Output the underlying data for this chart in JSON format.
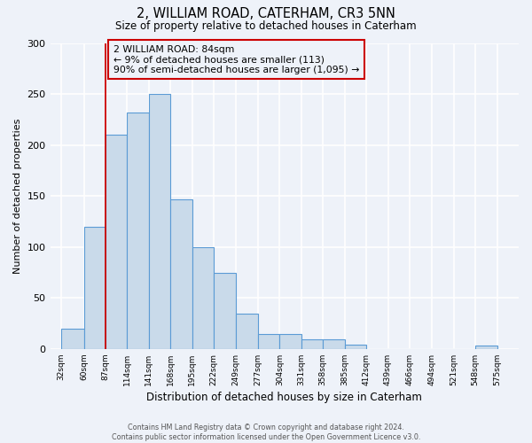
{
  "title": "2, WILLIAM ROAD, CATERHAM, CR3 5NN",
  "subtitle": "Size of property relative to detached houses in Caterham",
  "xlabel": "Distribution of detached houses by size in Caterham",
  "ylabel": "Number of detached properties",
  "bar_left_edges": [
    32,
    60,
    87,
    114,
    141,
    168,
    195,
    222,
    249,
    277,
    304,
    331,
    358,
    385,
    412,
    439,
    466,
    494,
    521,
    548
  ],
  "bar_widths": [
    28,
    27,
    27,
    27,
    27,
    27,
    27,
    27,
    28,
    27,
    27,
    27,
    27,
    27,
    27,
    27,
    28,
    27,
    27,
    27
  ],
  "bar_heights": [
    20,
    120,
    210,
    232,
    250,
    147,
    100,
    75,
    35,
    15,
    15,
    9,
    9,
    4,
    0,
    0,
    0,
    0,
    0,
    3
  ],
  "bar_color": "#c9daea",
  "bar_edge_color": "#5b9bd5",
  "tick_labels": [
    "32sqm",
    "60sqm",
    "87sqm",
    "114sqm",
    "141sqm",
    "168sqm",
    "195sqm",
    "222sqm",
    "249sqm",
    "277sqm",
    "304sqm",
    "331sqm",
    "358sqm",
    "385sqm",
    "412sqm",
    "439sqm",
    "466sqm",
    "494sqm",
    "521sqm",
    "548sqm",
    "575sqm"
  ],
  "tick_positions": [
    32,
    60,
    87,
    114,
    141,
    168,
    195,
    222,
    249,
    277,
    304,
    331,
    358,
    385,
    412,
    439,
    466,
    494,
    521,
    548,
    575
  ],
  "ylim": [
    0,
    300
  ],
  "xlim": [
    18,
    602
  ],
  "vline_x": 87,
  "vline_color": "#cc0000",
  "annotation_title": "2 WILLIAM ROAD: 84sqm",
  "annotation_line1": "← 9% of detached houses are smaller (113)",
  "annotation_line2": "90% of semi-detached houses are larger (1,095) →",
  "annotation_box_color": "#cc0000",
  "background_color": "#eef2f9",
  "footer1": "Contains HM Land Registry data © Crown copyright and database right 2024.",
  "footer2": "Contains public sector information licensed under the Open Government Licence v3.0.",
  "yticks": [
    0,
    50,
    100,
    150,
    200,
    250,
    300
  ],
  "grid_color": "#ffffff"
}
